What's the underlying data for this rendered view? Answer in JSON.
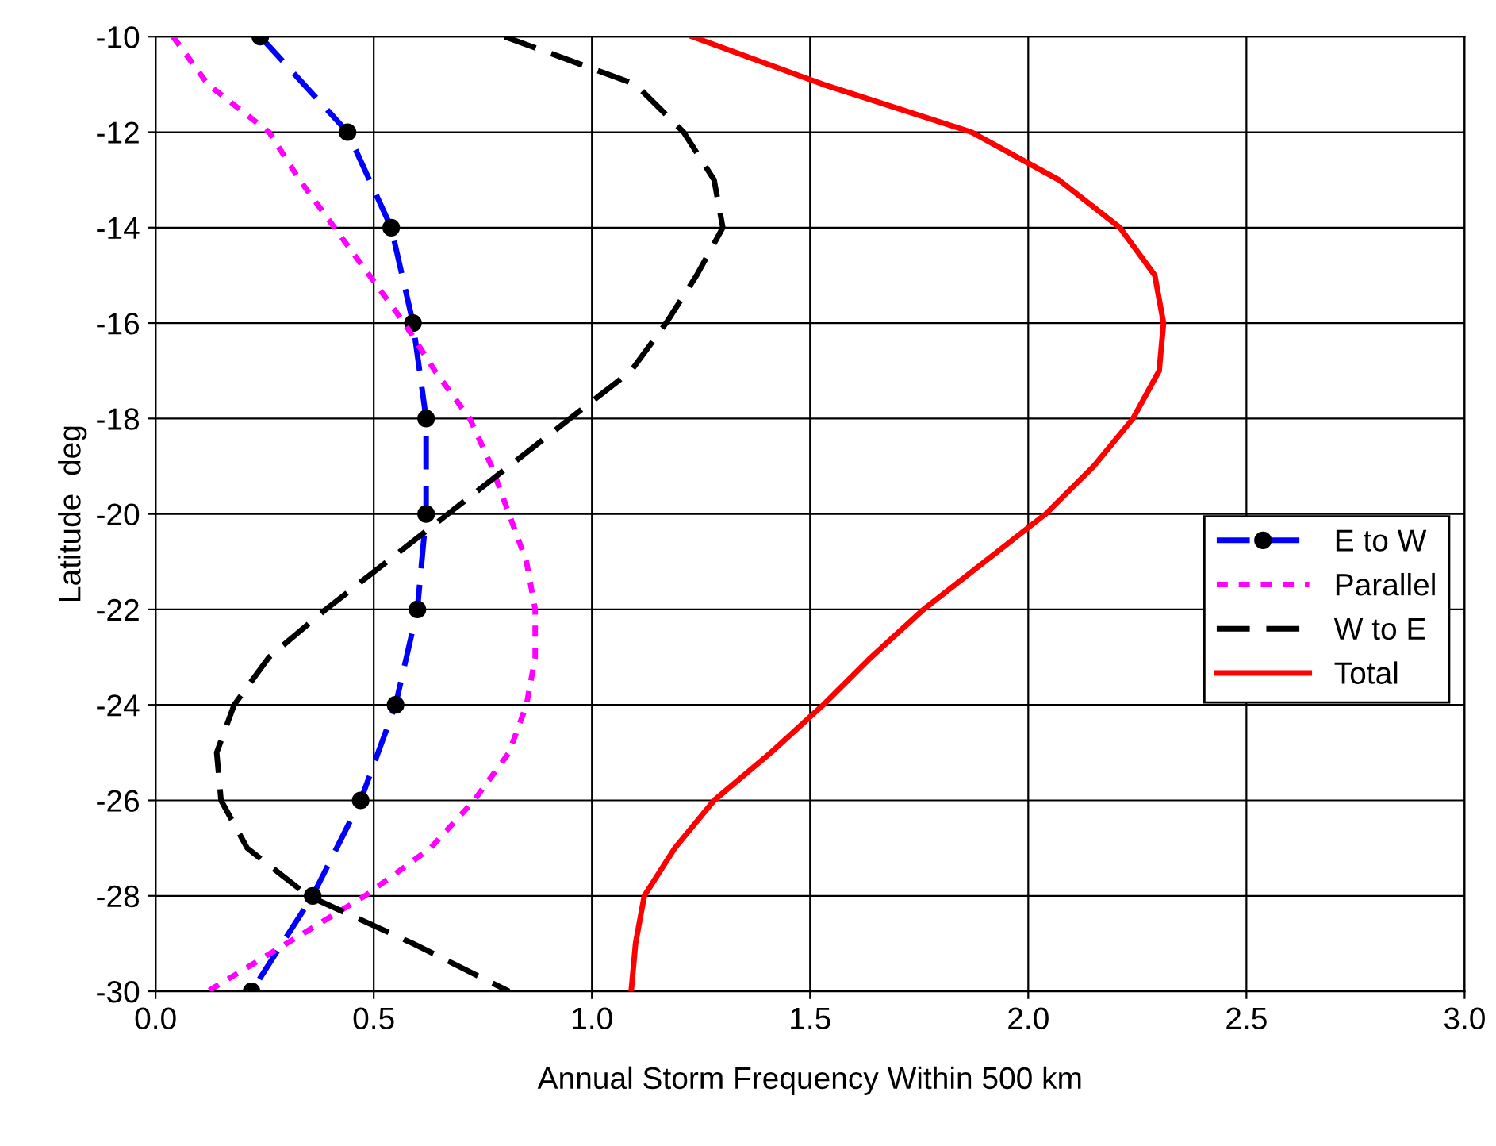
{
  "chart_data": {
    "type": "line",
    "xlabel": "Annual Storm Frequency Within 500 km",
    "ylabel": "Latitude  deg",
    "xlim": [
      0,
      3
    ],
    "xticks": [
      {
        "value": 0,
        "label": "0.0"
      },
      {
        "value": 0.5,
        "label": "0.5"
      },
      {
        "value": 1,
        "label": "1.0"
      },
      {
        "value": 1.5,
        "label": "1.5"
      },
      {
        "value": 2,
        "label": "2.0"
      },
      {
        "value": 2.5,
        "label": "2.5"
      },
      {
        "value": 3,
        "label": "3.0"
      }
    ],
    "ylim": [
      -30,
      -10
    ],
    "yticks": [
      -30,
      -28,
      -26,
      -24,
      -22,
      -20,
      -18,
      -16,
      -14,
      -12,
      -10
    ],
    "grid": true,
    "legend": "right",
    "series": [
      {
        "name": "E to W",
        "color": "#0000ff",
        "line_style": "dashed",
        "marker": "circle",
        "x": [
          0.24,
          0.44,
          0.54,
          0.59,
          0.62,
          0.62,
          0.6,
          0.55,
          0.47,
          0.36,
          0.22
        ],
        "values": [
          -10,
          -12,
          -14,
          -16,
          -18,
          -20,
          -22,
          -24,
          -26,
          -28,
          -30
        ]
      },
      {
        "name": "Parallel",
        "color": "#ff00ff",
        "line_style": "dotted",
        "marker": "none",
        "x": [
          0.04,
          0.12,
          0.26,
          0.33,
          0.41,
          0.49,
          0.57,
          0.64,
          0.72,
          0.77,
          0.81,
          0.85,
          0.87,
          0.87,
          0.85,
          0.81,
          0.73,
          0.63,
          0.48,
          0.3,
          0.12
        ],
        "values": [
          -10,
          -11,
          -12,
          -13,
          -14,
          -15,
          -16,
          -17,
          -18,
          -19,
          -20,
          -21,
          -22,
          -23,
          -24,
          -25,
          -26,
          -27,
          -28,
          -29,
          -30
        ]
      },
      {
        "name": "W to E",
        "color": "#000000",
        "line_style": "dashed",
        "marker": "none",
        "x": [
          0.8,
          1.1,
          1.21,
          1.28,
          1.3,
          1.24,
          1.17,
          1.09,
          0.95,
          0.81,
          0.67,
          0.53,
          0.39,
          0.26,
          0.18,
          0.14,
          0.15,
          0.21,
          0.35,
          0.59,
          0.81
        ],
        "values": [
          -10,
          -11,
          -12,
          -13,
          -14,
          -15,
          -16,
          -17,
          -18,
          -19,
          -20,
          -21,
          -22,
          -23,
          -24,
          -25,
          -26,
          -27,
          -28,
          -29,
          -30
        ]
      },
      {
        "name": "Total",
        "color": "#ff0000",
        "line_style": "solid",
        "marker": "none",
        "x": [
          1.23,
          1.53,
          1.87,
          2.07,
          2.21,
          2.29,
          2.31,
          2.3,
          2.24,
          2.15,
          2.04,
          1.9,
          1.76,
          1.64,
          1.53,
          1.41,
          1.28,
          1.19,
          1.12,
          1.1,
          1.09
        ],
        "values": [
          -10,
          -11,
          -12,
          -13,
          -14,
          -15,
          -16,
          -17,
          -18,
          -19,
          -20,
          -21,
          -22,
          -23,
          -24,
          -25,
          -26,
          -27,
          -28,
          -29,
          -30
        ]
      }
    ]
  }
}
